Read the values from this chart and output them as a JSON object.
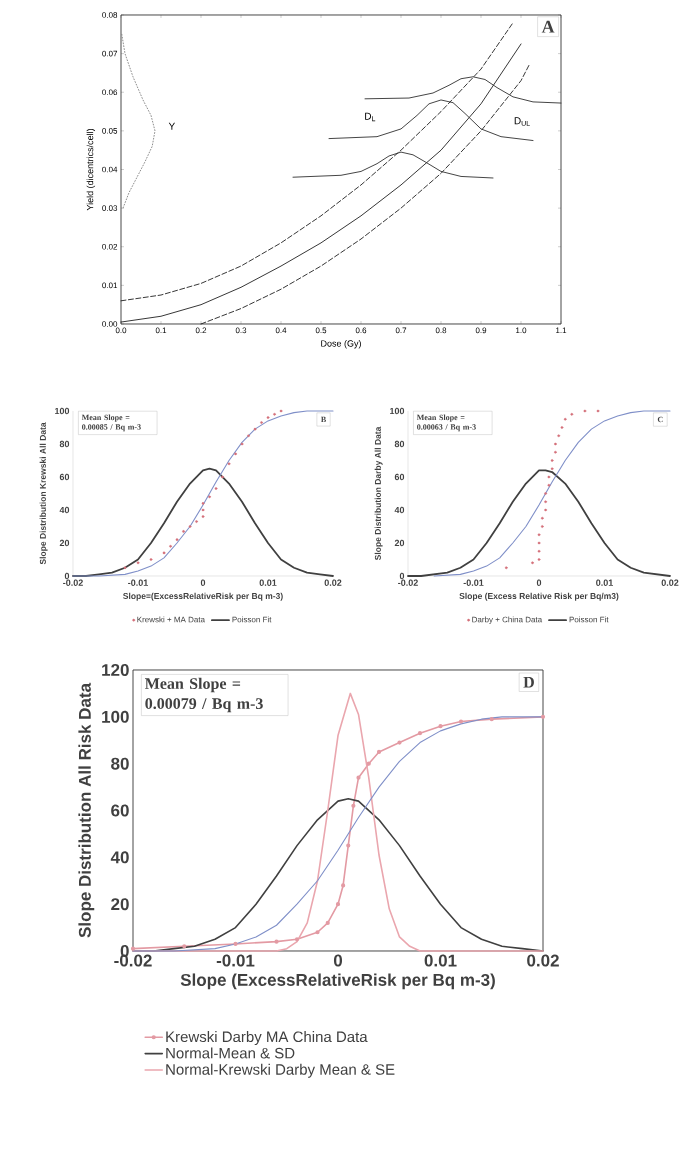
{
  "chart_data": [
    {
      "type": "line",
      "xlabel": "Dose (Gy)",
      "ylabel": "Yield (dicentrics/cell)",
      "xlim": [
        0,
        1.1
      ],
      "ylim": [
        0,
        0.08
      ],
      "xticks": [
        {
          "value": 0,
          "label": "0.0"
        },
        {
          "value": 0.1,
          "label": "0.1"
        },
        {
          "value": 0.2,
          "label": "0.2"
        },
        {
          "value": 0.3,
          "label": "0.3"
        },
        {
          "value": 0.4,
          "label": "0.4"
        },
        {
          "value": 0.5,
          "label": "0.5"
        },
        {
          "value": 0.6,
          "label": "0.6"
        },
        {
          "value": 0.7,
          "label": "0.7"
        },
        {
          "value": 0.8,
          "label": "0.8"
        },
        {
          "value": 0.9,
          "label": "0.9"
        },
        {
          "value": 1.0,
          "label": "1.0"
        },
        {
          "value": 1.1,
          "label": "1.1"
        }
      ],
      "yticks": [
        {
          "value": 0,
          "label": "0.00"
        },
        {
          "value": 0.01,
          "label": "0.01"
        },
        {
          "value": 0.02,
          "label": "0.02"
        },
        {
          "value": 0.03,
          "label": "0.03"
        },
        {
          "value": 0.04,
          "label": "0.04"
        },
        {
          "value": 0.05,
          "label": "0.05"
        },
        {
          "value": 0.06,
          "label": "0.06"
        },
        {
          "value": 0.07,
          "label": "0.07"
        },
        {
          "value": 0.08,
          "label": "0.08"
        }
      ],
      "annotations": [
        "Y",
        "D$_{L}$",
        "D$_{UL}$",
        "A"
      ],
      "series": [
        {
          "color": "#202020",
          "line_style": "solid",
          "x": [
            0,
            0.1,
            0.2,
            0.3,
            0.4,
            0.5,
            0.6,
            0.7,
            0.8,
            0.9,
            1.0
          ],
          "values": [
            0.0005,
            0.002,
            0.005,
            0.0095,
            0.015,
            0.021,
            0.028,
            0.036,
            0.045,
            0.057,
            0.0725
          ]
        },
        {
          "color": "#202020",
          "line_style": "dashed",
          "x": [
            0,
            0.1,
            0.2,
            0.3,
            0.4,
            0.5,
            0.6,
            0.7,
            0.8,
            0.9,
            0.98
          ],
          "values": [
            0.006,
            0.0075,
            0.0105,
            0.015,
            0.021,
            0.028,
            0.036,
            0.045,
            0.055,
            0.066,
            0.078
          ]
        },
        {
          "color": "#202020",
          "line_style": "dashed",
          "x": [
            0.2,
            0.3,
            0.4,
            0.5,
            0.6,
            0.7,
            0.8,
            0.9,
            1.0,
            1.02
          ],
          "values": [
            0,
            0.004,
            0.009,
            0.015,
            0.022,
            0.03,
            0.039,
            0.05,
            0.063,
            0.067
          ]
        },
        {
          "color": "#303030",
          "line_style": "solid",
          "x": [
            0.43,
            0.55,
            0.6,
            0.64,
            0.67,
            0.7,
            0.73,
            0.76,
            0.8,
            0.85,
            0.93
          ],
          "values": [
            0.038,
            0.0385,
            0.0395,
            0.0415,
            0.0435,
            0.0445,
            0.0438,
            0.042,
            0.0395,
            0.0382,
            0.0378
          ]
        },
        {
          "color": "#303030",
          "line_style": "solid",
          "x": [
            0.52,
            0.64,
            0.7,
            0.74,
            0.77,
            0.8,
            0.83,
            0.86,
            0.9,
            0.95,
            1.03
          ],
          "values": [
            0.048,
            0.0485,
            0.0505,
            0.054,
            0.057,
            0.058,
            0.0573,
            0.0545,
            0.0505,
            0.0485,
            0.0475
          ]
        },
        {
          "color": "#303030",
          "line_style": "solid",
          "x": [
            0.61,
            0.72,
            0.78,
            0.82,
            0.85,
            0.88,
            0.91,
            0.94,
            0.98,
            1.03,
            1.1
          ],
          "values": [
            0.0583,
            0.0585,
            0.0598,
            0.0618,
            0.0635,
            0.064,
            0.0633,
            0.0612,
            0.0588,
            0.0575,
            0.0572
          ]
        },
        {
          "color": "#808080",
          "line_style": "dotted",
          "x": [
            0.002,
            0.01,
            0.03,
            0.055,
            0.075,
            0.085,
            0.078,
            0.06,
            0.04,
            0.02,
            0.005
          ],
          "values": [
            0.075,
            0.07,
            0.064,
            0.058,
            0.054,
            0.05,
            0.046,
            0.042,
            0.038,
            0.034,
            0.03
          ]
        }
      ]
    },
    {
      "type": "line",
      "xlabel": "Slope=(ExcessRelativeRisk per Bq m-3)",
      "ylabel": "Slope Distribution Krewski All Data",
      "xlim": [
        -0.02,
        0.02
      ],
      "ylim": [
        0,
        100
      ],
      "xticks": [
        -0.02,
        -0.01,
        0,
        0.01,
        0.02
      ],
      "yticks": [
        0,
        20,
        40,
        60,
        80,
        100
      ],
      "annotations": [
        "Mean Slope = 0.00085 / Bq m-3",
        "B"
      ],
      "legend": "bottom",
      "series": [
        {
          "name": "Krewski + MA Data",
          "type": "scatter",
          "marker": "circle",
          "color": "#d4707a",
          "x": [
            -0.012,
            -0.01,
            -0.008,
            -0.006,
            -0.005,
            -0.004,
            -0.003,
            -0.002,
            -0.001,
            0,
            0,
            0,
            0.001,
            0.002,
            0.003,
            0.004,
            0.005,
            0.006,
            0.007,
            0.008,
            0.009,
            0.01,
            0.011,
            0.012
          ],
          "values": [
            5,
            8,
            10,
            14,
            18,
            22,
            27,
            30,
            33,
            36,
            40,
            44,
            48,
            53,
            60,
            68,
            74,
            80,
            85,
            89,
            93,
            96,
            98,
            100
          ]
        },
        {
          "name": "Poisson Fit",
          "color": "#404040",
          "x": [
            -0.02,
            -0.018,
            -0.016,
            -0.014,
            -0.012,
            -0.01,
            -0.008,
            -0.006,
            -0.004,
            -0.002,
            0,
            0.001,
            0.002,
            0.004,
            0.006,
            0.008,
            0.01,
            0.012,
            0.014,
            0.016,
            0.018,
            0.02
          ],
          "values": [
            0,
            0,
            1,
            2,
            5,
            10,
            20,
            32,
            45,
            56,
            64,
            65,
            64,
            56,
            45,
            32,
            20,
            10,
            5,
            2,
            1,
            0
          ]
        },
        {
          "color": "#7f8fc8",
          "x": [
            -0.02,
            -0.016,
            -0.012,
            -0.01,
            -0.008,
            -0.006,
            -0.004,
            -0.002,
            0,
            0.002,
            0.004,
            0.006,
            0.008,
            0.01,
            0.012,
            0.014,
            0.016,
            0.02
          ],
          "values": [
            0,
            0,
            1,
            3,
            6,
            11,
            20,
            30,
            43,
            57,
            70,
            81,
            89,
            94,
            97,
            99,
            100,
            100
          ]
        }
      ]
    },
    {
      "type": "line",
      "xlabel": "Slope (Excess Relative Risk per Bq/m3)",
      "ylabel": "Slope Distribution Darby All Data",
      "xlim": [
        -0.02,
        0.02
      ],
      "ylim": [
        0,
        100
      ],
      "xticks": [
        -0.02,
        -0.01,
        0,
        0.01,
        0.02
      ],
      "yticks": [
        0,
        20,
        40,
        60,
        80,
        100
      ],
      "annotations": [
        "Mean Slope = 0.00063 / Bq m-3",
        "C"
      ],
      "legend": "bottom",
      "series": [
        {
          "name": "Darby + China Data",
          "type": "scatter",
          "marker": "circle",
          "color": "#d4707a",
          "x": [
            -0.005,
            -0.001,
            0,
            0,
            0,
            0,
            0.0005,
            0.0005,
            0.001,
            0.001,
            0.001,
            0.0015,
            0.0015,
            0.002,
            0.002,
            0.0025,
            0.0025,
            0.003,
            0.0035,
            0.004,
            0.005,
            0.007,
            0.009
          ],
          "values": [
            5,
            8,
            10,
            15,
            20,
            25,
            30,
            35,
            40,
            45,
            50,
            55,
            60,
            65,
            70,
            75,
            80,
            85,
            90,
            95,
            98,
            100,
            100
          ]
        },
        {
          "name": "Poisson Fit",
          "color": "#404040",
          "x": [
            -0.02,
            -0.018,
            -0.016,
            -0.014,
            -0.012,
            -0.01,
            -0.008,
            -0.006,
            -0.004,
            -0.002,
            0,
            0.001,
            0.002,
            0.004,
            0.006,
            0.008,
            0.01,
            0.012,
            0.014,
            0.016,
            0.018,
            0.02
          ],
          "values": [
            0,
            0,
            1,
            2,
            5,
            10,
            20,
            32,
            45,
            56,
            64,
            64,
            63,
            56,
            45,
            32,
            20,
            10,
            5,
            2,
            1,
            0
          ]
        },
        {
          "color": "#7f8fc8",
          "x": [
            -0.016,
            -0.012,
            -0.01,
            -0.008,
            -0.006,
            -0.004,
            -0.002,
            0,
            0.002,
            0.004,
            0.006,
            0.008,
            0.01,
            0.012,
            0.014,
            0.016,
            0.02
          ],
          "values": [
            0,
            1,
            3,
            6,
            11,
            20,
            30,
            43,
            57,
            70,
            81,
            89,
            94,
            97,
            99,
            100,
            100
          ]
        }
      ]
    },
    {
      "type": "line",
      "xlabel": "Slope (ExcessRelativeRisk per Bq m-3)",
      "ylabel": "Slope Distribution All Risk Data",
      "xlim": [
        -0.02,
        0.02
      ],
      "ylim": [
        0,
        120
      ],
      "xticks": [
        -0.02,
        -0.01,
        0,
        0.01,
        0.02
      ],
      "yticks": [
        0,
        20,
        40,
        60,
        80,
        100,
        120
      ],
      "annotations": [
        "Mean Slope = 0.00079 / Bq m-3",
        "D"
      ],
      "legend": "bottom",
      "series": [
        {
          "name": "Krewski Darby MA China Data",
          "marker": "circle",
          "color": "#e39aa3",
          "x": [
            -0.02,
            -0.015,
            -0.01,
            -0.006,
            -0.004,
            -0.002,
            -0.001,
            0,
            0.0005,
            0.001,
            0.0015,
            0.002,
            0.003,
            0.004,
            0.006,
            0.008,
            0.01,
            0.012,
            0.015,
            0.02
          ],
          "values": [
            1,
            2,
            3,
            4,
            5,
            8,
            12,
            20,
            28,
            45,
            62,
            74,
            80,
            85,
            89,
            93,
            96,
            98,
            99,
            100
          ]
        },
        {
          "name": "Normal-Mean & SD",
          "color": "#404040",
          "x": [
            -0.02,
            -0.018,
            -0.016,
            -0.014,
            -0.012,
            -0.01,
            -0.008,
            -0.006,
            -0.004,
            -0.002,
            0,
            0.001,
            0.002,
            0.004,
            0.006,
            0.008,
            0.01,
            0.012,
            0.014,
            0.016,
            0.018,
            0.02
          ],
          "values": [
            0,
            0,
            1,
            2,
            5,
            10,
            20,
            32,
            45,
            56,
            64,
            65,
            64,
            56,
            45,
            32,
            20,
            10,
            5,
            2,
            1,
            0
          ]
        },
        {
          "name": "Normal-Krewski Darby Mean & SE",
          "color": "#eaa6ae",
          "x": [
            -0.02,
            -0.006,
            -0.005,
            -0.004,
            -0.003,
            -0.002,
            -0.001,
            0,
            0.0012,
            0.002,
            0.003,
            0.004,
            0.005,
            0.006,
            0.007,
            0.008,
            0.02
          ],
          "values": [
            0,
            0,
            1,
            4,
            12,
            30,
            60,
            92,
            110,
            101,
            74,
            41,
            18,
            6,
            2,
            0,
            0
          ]
        },
        {
          "color": "#7f8fc8",
          "x": [
            -0.02,
            -0.016,
            -0.012,
            -0.01,
            -0.008,
            -0.006,
            -0.004,
            -0.002,
            0,
            0.002,
            0.004,
            0.006,
            0.008,
            0.01,
            0.012,
            0.014,
            0.016,
            0.02
          ],
          "values": [
            0,
            0,
            1,
            3,
            6,
            11,
            20,
            30,
            43,
            57,
            70,
            81,
            89,
            94,
            97,
            99,
            100,
            100
          ]
        }
      ]
    }
  ]
}
